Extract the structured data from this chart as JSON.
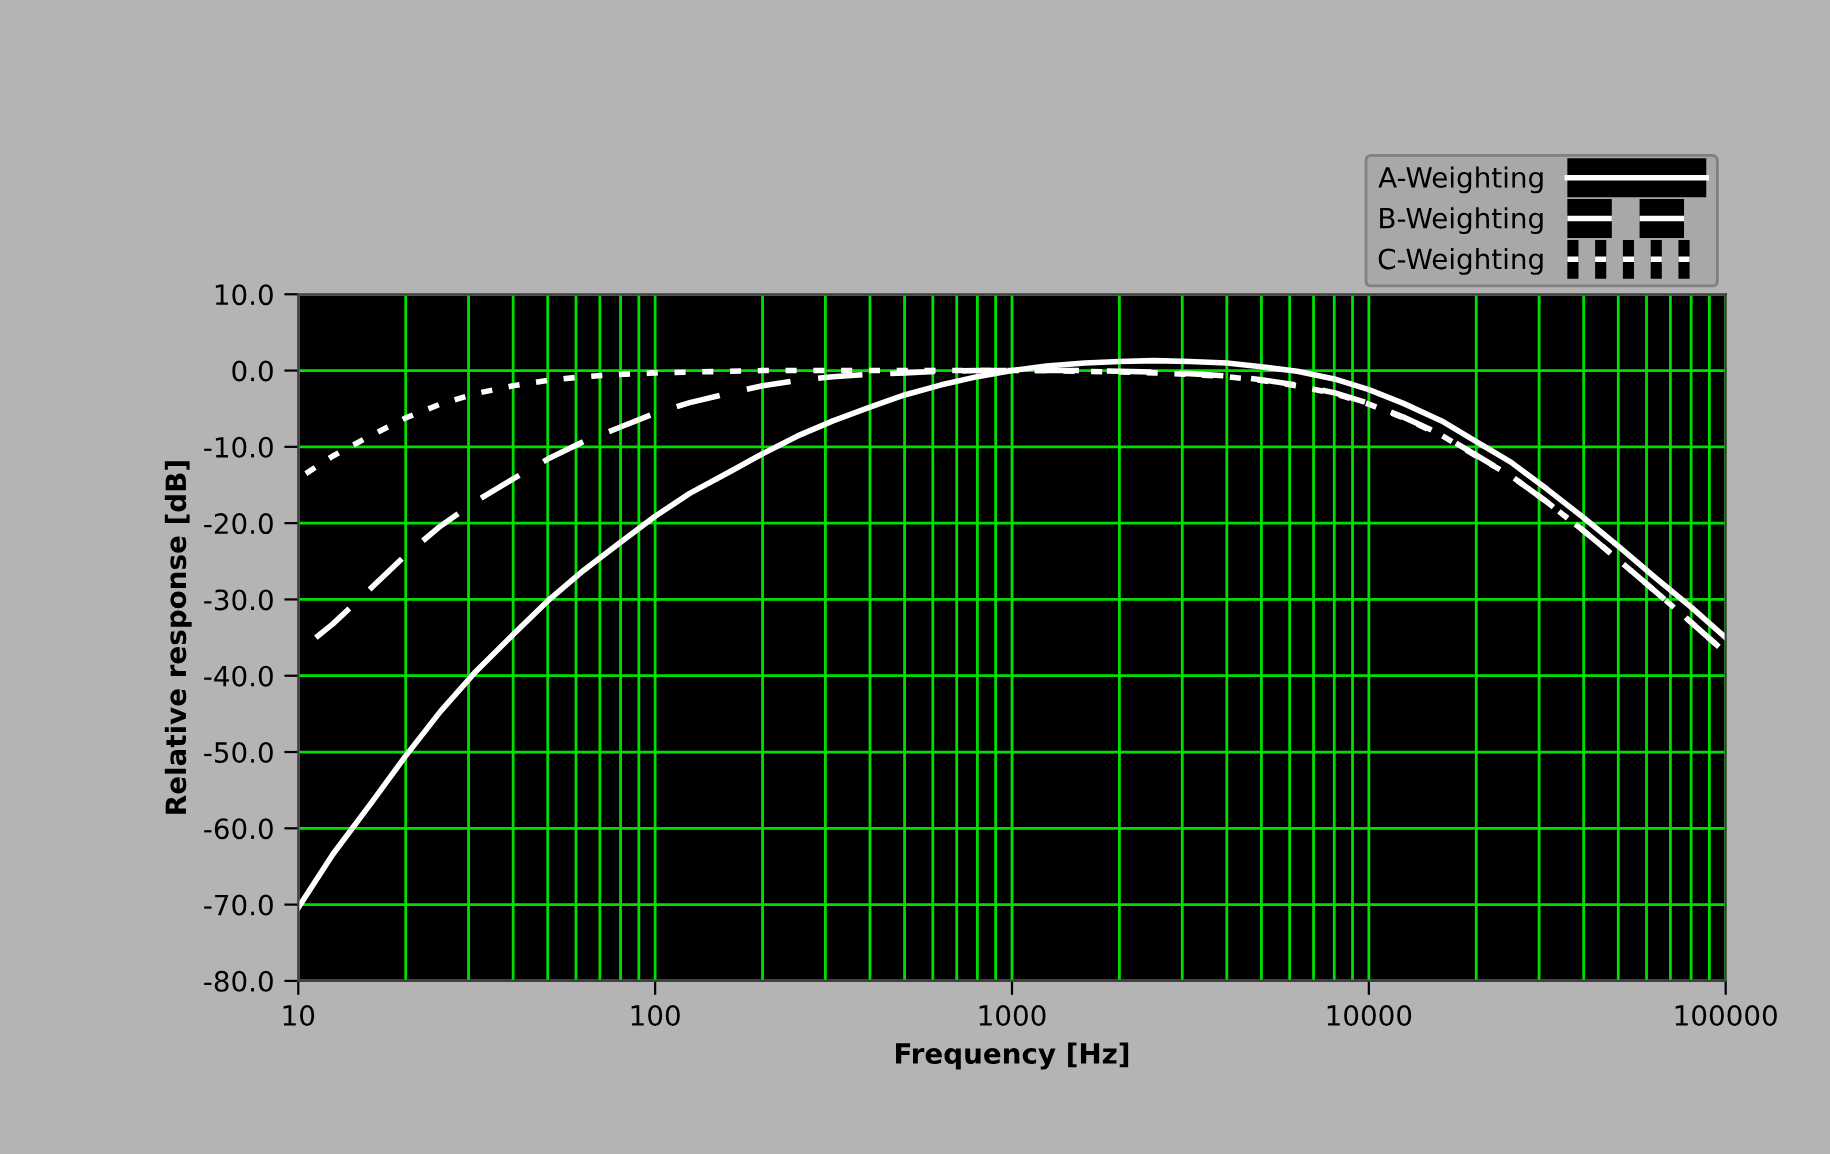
{
  "chart_data": {
    "type": "line",
    "xlabel": "Frequency [Hz]",
    "ylabel": "Relative response [dB]",
    "log": "x",
    "xlim": [
      10,
      100000
    ],
    "ylim": [
      -80,
      10
    ],
    "xticks": [
      10,
      {
        "value": 20,
        "label": null
      },
      {
        "value": 30,
        "label": null
      },
      {
        "value": 40,
        "label": null
      },
      {
        "value": 50,
        "label": null
      },
      {
        "value": 60,
        "label": null
      },
      {
        "value": 70,
        "label": null
      },
      {
        "value": 80,
        "label": null
      },
      {
        "value": 90,
        "label": null
      },
      100,
      {
        "value": 200,
        "label": null
      },
      {
        "value": 300,
        "label": null
      },
      {
        "value": 400,
        "label": null
      },
      {
        "value": 500,
        "label": null
      },
      {
        "value": 600,
        "label": null
      },
      {
        "value": 700,
        "label": null
      },
      {
        "value": 800,
        "label": null
      },
      {
        "value": 900,
        "label": null
      },
      1000,
      {
        "value": 2000,
        "label": null
      },
      {
        "value": 3000,
        "label": null
      },
      {
        "value": 4000,
        "label": null
      },
      {
        "value": 5000,
        "label": null
      },
      {
        "value": 6000,
        "label": null
      },
      {
        "value": 7000,
        "label": null
      },
      {
        "value": 8000,
        "label": null
      },
      {
        "value": 9000,
        "label": null
      },
      10000,
      {
        "value": 20000,
        "label": null
      },
      {
        "value": 30000,
        "label": null
      },
      {
        "value": 40000,
        "label": null
      },
      {
        "value": 50000,
        "label": null
      },
      {
        "value": 60000,
        "label": null
      },
      {
        "value": 70000,
        "label": null
      },
      {
        "value": 80000,
        "label": null
      },
      {
        "value": 90000,
        "label": null
      },
      100000
    ],
    "yticks": [
      {
        "value": 10,
        "label": "10.0"
      },
      {
        "value": 0,
        "label": "0.0"
      },
      {
        "value": -10,
        "label": "-10.0"
      },
      {
        "value": -20,
        "label": "-20.0"
      },
      {
        "value": -30,
        "label": "-30.0"
      },
      {
        "value": -40,
        "label": "-40.0"
      },
      {
        "value": -50,
        "label": "-50.0"
      },
      {
        "value": -60,
        "label": "-60.0"
      },
      {
        "value": -70,
        "label": "-70.0"
      },
      {
        "value": -80,
        "label": "-80.0"
      }
    ],
    "grid": true,
    "legend": "top right",
    "marker": "none",
    "series": [
      {
        "name": "A-Weighting",
        "color": "#ffffff",
        "line_style": "solid",
        "x": [
          10,
          12.5,
          16,
          20,
          25,
          31.5,
          40,
          50,
          63,
          80,
          100,
          125,
          160,
          200,
          250,
          315,
          400,
          500,
          630,
          800,
          1000,
          1250,
          1600,
          2000,
          2500,
          3150,
          4000,
          5000,
          6300,
          8000,
          10000,
          12500,
          16000,
          20000,
          25000,
          31500,
          40000,
          50000,
          63000,
          80000,
          100000
        ],
        "values": [
          -70.4,
          -63.4,
          -56.7,
          -50.5,
          -44.7,
          -39.4,
          -34.6,
          -30.2,
          -26.2,
          -22.5,
          -19.1,
          -16.1,
          -13.4,
          -10.9,
          -8.6,
          -6.6,
          -4.8,
          -3.2,
          -1.9,
          -0.8,
          0,
          0.6,
          1.0,
          1.2,
          1.3,
          1.2,
          1.0,
          0.5,
          -0.1,
          -1.1,
          -2.5,
          -4.3,
          -6.6,
          -9.3,
          -12,
          -15.5,
          -19.3,
          -23,
          -27,
          -31,
          -35
        ]
      },
      {
        "name": "B-Weighting",
        "color": "#ffffff",
        "line_style": "dashed",
        "x": [
          11.2,
          12.5,
          16,
          20,
          25,
          31.5,
          40,
          50,
          63,
          80,
          100,
          125,
          160,
          200,
          250,
          315,
          400,
          500,
          630,
          800,
          1000,
          1250,
          1600,
          2000,
          2500,
          3150,
          4000,
          5000,
          6300,
          8000,
          10000,
          12500,
          16000,
          20000,
          25000,
          31500,
          40000,
          50000,
          63000,
          80000,
          100000
        ],
        "values": [
          -35,
          -33.2,
          -28.5,
          -24.2,
          -20.4,
          -17.1,
          -14.2,
          -11.6,
          -9.3,
          -7.4,
          -5.6,
          -4.2,
          -3.0,
          -2.0,
          -1.3,
          -0.8,
          -0.5,
          -0.3,
          -0.1,
          0,
          0,
          0,
          0,
          -0.1,
          -0.2,
          -0.4,
          -0.7,
          -1.2,
          -1.9,
          -2.9,
          -4.3,
          -6.1,
          -8.4,
          -11.1,
          -13.8,
          -17.2,
          -21,
          -24.8,
          -28.8,
          -33,
          -37
        ]
      },
      {
        "name": "C-Weighting",
        "color": "#ffffff",
        "line_style": "dotted",
        "x": [
          10.5,
          12.5,
          16,
          20,
          25,
          31.5,
          40,
          50,
          63,
          80,
          100,
          125,
          160,
          200,
          250,
          315,
          400,
          500,
          630,
          800,
          1000,
          1250,
          1600,
          2000,
          2500,
          3150,
          4000,
          5000,
          6300,
          8000,
          10000,
          12500,
          16000,
          20000,
          25000,
          31500,
          40000,
          50000,
          63000,
          80000,
          100000
        ],
        "values": [
          -13.5,
          -11.2,
          -8.5,
          -6.2,
          -4.4,
          -3.0,
          -2.0,
          -1.3,
          -0.8,
          -0.5,
          -0.3,
          -0.2,
          -0.1,
          0,
          0,
          0,
          0,
          0,
          0,
          0,
          0,
          0,
          -0.1,
          -0.2,
          -0.3,
          -0.5,
          -0.8,
          -1.3,
          -2.0,
          -3.0,
          -4.4,
          -6.2,
          -8.5,
          -11.2,
          -13.8,
          -17.2,
          -21,
          -24.8,
          -28.8,
          -33,
          -37
        ]
      }
    ]
  }
}
